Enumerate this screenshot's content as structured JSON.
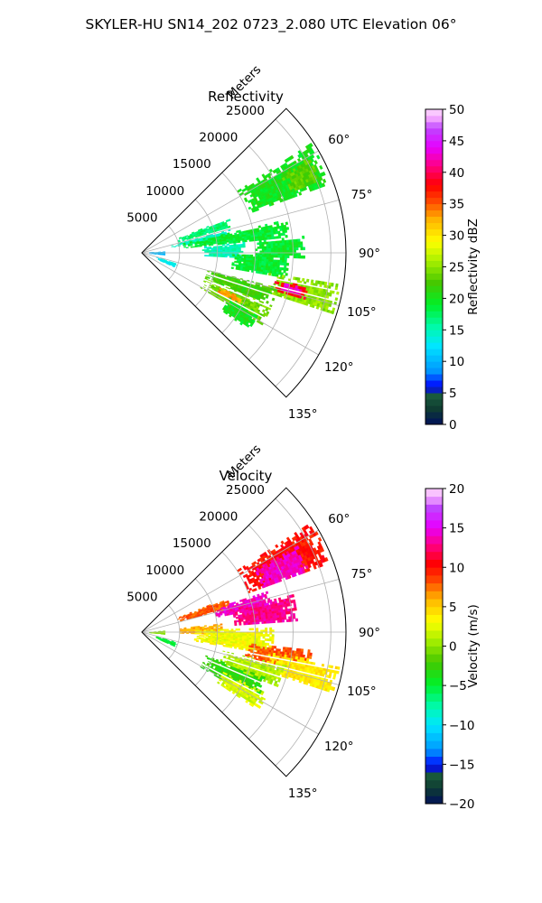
{
  "figure_title": "SKYLER-HU  SN14_202  0723_2.080 UTC Elevation 06°",
  "chart_data": [
    {
      "type": "heatmap",
      "subtype": "polar-sector",
      "title": "Reflectivity",
      "range_label": "Meters",
      "range_ticks": [
        5000,
        10000,
        15000,
        20000,
        25000
      ],
      "range_tick_labels": [
        "5000",
        "10000",
        "15000",
        "20000",
        "25000"
      ],
      "range_max": 27000,
      "azimuth_range_deg": [
        45,
        135
      ],
      "azimuth_ticks": [
        60,
        75,
        90,
        105,
        120,
        135
      ],
      "azimuth_tick_labels": [
        "60°",
        "75°",
        "90°",
        "105°",
        "120°",
        "135°"
      ],
      "grid": true,
      "colorbar": {
        "label": "Reflectivity dBZ",
        "min": 0,
        "max": 50,
        "ticks": [
          0,
          5,
          10,
          15,
          20,
          25,
          30,
          35,
          40,
          45,
          50
        ],
        "tick_labels": [
          "0",
          "5",
          "10",
          "15",
          "20",
          "25",
          "30",
          "35",
          "40",
          "45",
          "50"
        ],
        "levels": 50
      },
      "echo_regions": [
        {
          "az": [
            57,
            70
          ],
          "r": [
            15000,
            26500
          ],
          "value": 20
        },
        {
          "az": [
            60,
            68
          ],
          "r": [
            21000,
            25500
          ],
          "value": 23
        },
        {
          "az": [
            68,
            74
          ],
          "r": [
            5000,
            12500
          ],
          "value": 17
        },
        {
          "az": [
            75,
            80
          ],
          "r": [
            4000,
            12000
          ],
          "value": 15
        },
        {
          "az": [
            77,
            84
          ],
          "r": [
            5000,
            19500
          ],
          "value": 19
        },
        {
          "az": [
            84,
            93
          ],
          "r": [
            8000,
            13500
          ],
          "value": 15
        },
        {
          "az": [
            84,
            92
          ],
          "r": [
            15000,
            21500
          ],
          "value": 19
        },
        {
          "az": [
            91,
            100
          ],
          "r": [
            12000,
            19500
          ],
          "value": 19
        },
        {
          "az": [
            99,
            108
          ],
          "r": [
            17000,
            26500
          ],
          "value": 25
        },
        {
          "az": [
            101,
            106
          ],
          "r": [
            18000,
            22500
          ],
          "value": 38
        },
        {
          "az": [
            102,
            105
          ],
          "r": [
            19000,
            21500
          ],
          "value": 43
        },
        {
          "az": [
            104,
            112
          ],
          "r": [
            9000,
            18500
          ],
          "value": 22
        },
        {
          "az": [
            112,
            121
          ],
          "r": [
            9000,
            18500
          ],
          "value": 24
        },
        {
          "az": [
            114,
            118
          ],
          "r": [
            11000,
            14500
          ],
          "value": 33
        },
        {
          "az": [
            117,
            126
          ],
          "r": [
            13000,
            17500
          ],
          "value": 20
        },
        {
          "az": [
            87,
            96
          ],
          "r": [
            1000,
            3000
          ],
          "value": 10
        },
        {
          "az": [
            106,
            114
          ],
          "r": [
            2000,
            5000
          ],
          "value": 13
        }
      ]
    },
    {
      "type": "heatmap",
      "subtype": "polar-sector",
      "title": "Velocity",
      "range_label": "Meters",
      "range_ticks": [
        5000,
        10000,
        15000,
        20000,
        25000
      ],
      "range_tick_labels": [
        "5000",
        "10000",
        "15000",
        "20000",
        "25000"
      ],
      "range_max": 27000,
      "azimuth_range_deg": [
        45,
        135
      ],
      "azimuth_ticks": [
        60,
        75,
        90,
        105,
        120,
        135
      ],
      "azimuth_tick_labels": [
        "60°",
        "75°",
        "90°",
        "105°",
        "120°",
        "135°"
      ],
      "grid": true,
      "colorbar": {
        "label": "Velocity (m/s)",
        "min": -20,
        "max": 20,
        "ticks": [
          -20,
          -15,
          -10,
          -5,
          0,
          5,
          10,
          15,
          20
        ],
        "tick_labels": [
          "−20",
          "−15",
          "−10",
          "−5",
          "0",
          "5",
          "10",
          "15",
          "20"
        ],
        "levels": 40
      },
      "echo_regions": [
        {
          "az": [
            57,
            70
          ],
          "r": [
            15000,
            26500
          ],
          "value": 10
        },
        {
          "az": [
            61,
            70
          ],
          "r": [
            17000,
            23500
          ],
          "value": 14
        },
        {
          "az": [
            68,
            75
          ],
          "r": [
            5000,
            12500
          ],
          "value": 8
        },
        {
          "az": [
            72,
            79
          ],
          "r": [
            10000,
            17500
          ],
          "value": 14
        },
        {
          "az": [
            76,
            86
          ],
          "r": [
            12000,
            20500
          ],
          "value": 13
        },
        {
          "az": [
            84,
            92
          ],
          "r": [
            5000,
            10500
          ],
          "value": 6
        },
        {
          "az": [
            88,
            100
          ],
          "r": [
            7000,
            17500
          ],
          "value": 3
        },
        {
          "az": [
            96,
            104
          ],
          "r": [
            14000,
            22500
          ],
          "value": 8
        },
        {
          "az": [
            99,
            108
          ],
          "r": [
            17000,
            26500
          ],
          "value": 4
        },
        {
          "az": [
            103,
            112
          ],
          "r": [
            11000,
            19500
          ],
          "value": 1
        },
        {
          "az": [
            110,
            121
          ],
          "r": [
            9000,
            17500
          ],
          "value": -3
        },
        {
          "az": [
            116,
            124
          ],
          "r": [
            12000,
            18500
          ],
          "value": 2
        },
        {
          "az": [
            87,
            96
          ],
          "r": [
            1000,
            3000
          ],
          "value": 0
        },
        {
          "az": [
            106,
            114
          ],
          "r": [
            2000,
            5000
          ],
          "value": -5
        }
      ]
    }
  ]
}
